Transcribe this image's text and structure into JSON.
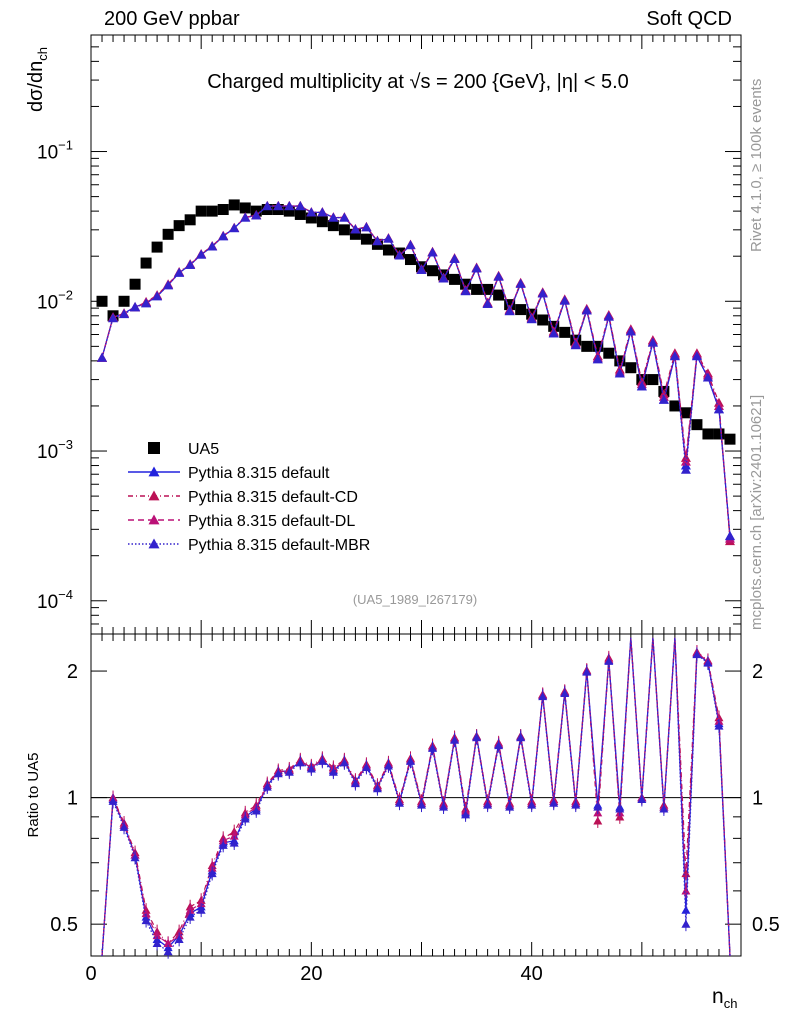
{
  "header": {
    "left": "200 GeV ppbar",
    "right": "Soft QCD"
  },
  "side_labels": {
    "rivet": "Rivet 4.1.0, ≥ 100k events",
    "mcplots": "mcplots.cern.ch [arXiv:2401.10621]"
  },
  "colors": {
    "data": "#000000",
    "default": "#2222dd",
    "cd": "#bb1155",
    "dl": "#bb1177",
    "mbr": "#3322cc"
  },
  "chart_data": [
    {
      "type": "scatter",
      "panel": "main",
      "title": "Charged multiplicity at √s = 200 {GeV}, |η| < 5.0",
      "ylabel": "dσ/dn_ch",
      "yscale": "log",
      "ylim": [
        6e-05,
        0.6
      ],
      "xlim": [
        0,
        59
      ],
      "y_ticks": [
        {
          "value": 0.1,
          "label": "10⁻¹"
        },
        {
          "value": 0.01,
          "label": "10⁻²"
        },
        {
          "value": 0.001,
          "label": "10⁻³"
        },
        {
          "value": 0.0001,
          "label": "10⁻⁴"
        }
      ],
      "reference": "(UA5_1989_I267179)",
      "legend": [
        {
          "key": "ua5",
          "label": "UA5"
        },
        {
          "key": "default",
          "label": "Pythia 8.315 default"
        },
        {
          "key": "cd",
          "label": "Pythia 8.315 default-CD"
        },
        {
          "key": "dl",
          "label": "Pythia 8.315 default-DL"
        },
        {
          "key": "mbr",
          "label": "Pythia 8.315 default-MBR"
        }
      ],
      "data_x": [
        1,
        2,
        3,
        4,
        5,
        6,
        7,
        8,
        9,
        10,
        11,
        12,
        13,
        14,
        15,
        16,
        17,
        18,
        19,
        20,
        21,
        22,
        23,
        24,
        25,
        26,
        27,
        28,
        29,
        30,
        31,
        32,
        33,
        34,
        35,
        36,
        37,
        38,
        39,
        40,
        41,
        42,
        43,
        44,
        45,
        46,
        47,
        48,
        49,
        50,
        51,
        52,
        53,
        54,
        55,
        56,
        57,
        58
      ],
      "data_y": [
        0.01,
        0.008,
        0.01,
        0.013,
        0.018,
        0.023,
        0.028,
        0.032,
        0.035,
        0.04,
        0.04,
        0.041,
        0.044,
        0.042,
        0.04,
        0.041,
        0.041,
        0.04,
        0.038,
        0.036,
        0.034,
        0.032,
        0.03,
        0.028,
        0.026,
        0.024,
        0.022,
        0.021,
        0.019,
        0.017,
        0.016,
        0.015,
        0.014,
        0.013,
        0.012,
        0.012,
        0.011,
        0.0095,
        0.0088,
        0.0082,
        0.0075,
        0.0068,
        0.0062,
        0.0055,
        0.005,
        0.005,
        0.0045,
        0.004,
        0.0036,
        0.003,
        0.003,
        0.0025,
        0.002,
        0.0018,
        0.0015,
        0.0013,
        0.0013,
        0.0012
      ],
      "mc_x": [
        1,
        2,
        3,
        4,
        5,
        6,
        7,
        8,
        9,
        10,
        11,
        12,
        13,
        14,
        15,
        16,
        17,
        18,
        19,
        20,
        21,
        22,
        23,
        24,
        25,
        26,
        27,
        28,
        29,
        30,
        31,
        32,
        33,
        34,
        35,
        36,
        37,
        38,
        39,
        40,
        41,
        42,
        43,
        44,
        45,
        46,
        47,
        48,
        49,
        50,
        51,
        52,
        53,
        54,
        55,
        56,
        57,
        58
      ],
      "series": [
        {
          "name": "Pythia 8.315 default",
          "key": "default",
          "values": [
            0.0042,
            0.0078,
            0.0083,
            0.0092,
            0.0097,
            0.0108,
            0.0128,
            0.0155,
            0.0175,
            0.0205,
            0.0232,
            0.0272,
            0.0308,
            0.0362,
            0.0375,
            0.0432,
            0.0432,
            0.0432,
            0.0432,
            0.0392,
            0.0392,
            0.0362,
            0.0362,
            0.0302,
            0.0312,
            0.0252,
            0.0262,
            0.0202,
            0.0237,
            0.0162,
            0.0212,
            0.0142,
            0.0192,
            0.0117,
            0.0166,
            0.0096,
            0.0146,
            0.0086,
            0.0131,
            0.0076,
            0.0113,
            0.0061,
            0.0101,
            0.0051,
            0.0087,
            0.0041,
            0.0079,
            0.0033,
            0.0063,
            0.0027,
            0.0053,
            0.0022,
            0.0043,
            0.0008,
            0.0043,
            0.0031,
            0.0019,
            0.00027
          ]
        },
        {
          "name": "Pythia 8.315 default-CD",
          "key": "cd",
          "values": [
            0.0042,
            0.0078,
            0.0083,
            0.0091,
            0.0099,
            0.011,
            0.013,
            0.0157,
            0.0177,
            0.0207,
            0.0234,
            0.0274,
            0.031,
            0.0364,
            0.0377,
            0.0434,
            0.0434,
            0.0434,
            0.0434,
            0.0394,
            0.0394,
            0.0364,
            0.0364,
            0.0304,
            0.0314,
            0.0254,
            0.0264,
            0.0204,
            0.0239,
            0.0164,
            0.0214,
            0.0144,
            0.0194,
            0.0119,
            0.0168,
            0.0098,
            0.0148,
            0.0088,
            0.0133,
            0.0078,
            0.0115,
            0.0063,
            0.0103,
            0.0053,
            0.0089,
            0.0043,
            0.0081,
            0.0035,
            0.0065,
            0.0029,
            0.0055,
            0.0024,
            0.0045,
            0.0009,
            0.0045,
            0.0033,
            0.0021,
            0.00025
          ]
        },
        {
          "name": "Pythia 8.315 default-DL",
          "key": "dl",
          "values": [
            0.0042,
            0.0078,
            0.0083,
            0.0091,
            0.0098,
            0.0109,
            0.0129,
            0.0156,
            0.0176,
            0.0206,
            0.0233,
            0.0273,
            0.0309,
            0.0363,
            0.0376,
            0.0433,
            0.0433,
            0.0433,
            0.0433,
            0.0393,
            0.0393,
            0.0363,
            0.0363,
            0.0303,
            0.0313,
            0.0253,
            0.0263,
            0.0203,
            0.0238,
            0.0163,
            0.0213,
            0.0143,
            0.0193,
            0.0118,
            0.0167,
            0.0097,
            0.0147,
            0.0087,
            0.0132,
            0.0077,
            0.0114,
            0.0062,
            0.0102,
            0.0052,
            0.0088,
            0.0042,
            0.008,
            0.0034,
            0.0064,
            0.0028,
            0.0054,
            0.0023,
            0.0044,
            0.00085,
            0.0044,
            0.0032,
            0.002,
            0.00026
          ]
        },
        {
          "name": "Pythia 8.315 default-MBR",
          "key": "mbr",
          "values": [
            0.0042,
            0.0077,
            0.0082,
            0.0091,
            0.0097,
            0.0108,
            0.0128,
            0.0155,
            0.0175,
            0.0205,
            0.0232,
            0.0272,
            0.0308,
            0.0362,
            0.0375,
            0.0432,
            0.0432,
            0.0432,
            0.0432,
            0.0392,
            0.0392,
            0.0362,
            0.0362,
            0.0302,
            0.0312,
            0.0252,
            0.0262,
            0.0202,
            0.0237,
            0.0162,
            0.0212,
            0.0142,
            0.0192,
            0.0117,
            0.0166,
            0.0096,
            0.0146,
            0.0086,
            0.0131,
            0.0076,
            0.0113,
            0.0061,
            0.0101,
            0.0051,
            0.0087,
            0.0041,
            0.0079,
            0.0033,
            0.0063,
            0.0027,
            0.0053,
            0.0022,
            0.0043,
            0.00075,
            0.0043,
            0.0031,
            0.0019,
            0.00027
          ]
        }
      ]
    },
    {
      "type": "line",
      "panel": "ratio",
      "ylabel": "Ratio to UA5",
      "xlabel": "n_ch",
      "yscale": "log",
      "ylim": [
        0.42,
        2.45
      ],
      "xlim": [
        0,
        59
      ],
      "x_ticks": [
        {
          "value": 0,
          "label": "0"
        },
        {
          "value": 20,
          "label": "20"
        },
        {
          "value": 40,
          "label": "40"
        }
      ],
      "y_ticks": [
        {
          "value": 0.5,
          "label": "0.5"
        },
        {
          "value": 1,
          "label": "1"
        },
        {
          "value": 2,
          "label": "2"
        }
      ],
      "x": [
        1,
        2,
        3,
        4,
        5,
        6,
        7,
        8,
        9,
        10,
        11,
        12,
        13,
        14,
        15,
        16,
        17,
        18,
        19,
        20,
        21,
        22,
        23,
        24,
        25,
        26,
        27,
        28,
        29,
        30,
        31,
        32,
        33,
        34,
        35,
        36,
        37,
        38,
        39,
        40,
        41,
        42,
        43,
        44,
        45,
        46,
        47,
        48,
        49,
        50,
        51,
        52,
        53,
        54,
        55,
        56,
        57,
        58
      ],
      "series": [
        {
          "name": "Pythia 8.315 default",
          "key": "default",
          "values": [
            0.4,
            0.99,
            0.86,
            0.73,
            0.52,
            0.46,
            0.44,
            0.47,
            0.53,
            0.55,
            0.67,
            0.78,
            0.79,
            0.9,
            0.94,
            1.07,
            1.15,
            1.16,
            1.22,
            1.18,
            1.23,
            1.16,
            1.22,
            1.09,
            1.19,
            1.06,
            1.2,
            0.98,
            1.23,
            0.97,
            1.32,
            0.96,
            1.38,
            0.92,
            1.4,
            0.97,
            1.34,
            0.96,
            1.4,
            0.97,
            1.75,
            0.98,
            1.78,
            0.97,
            2.0,
            0.96,
            2.12,
            0.95,
            2.4,
            1.0,
            2.4,
            0.95,
            2.4,
            0.54,
            2.2,
            2.1,
            1.5,
            0.22
          ]
        },
        {
          "name": "Pythia 8.315 default-CD",
          "key": "cd",
          "values": [
            0.41,
            1.0,
            0.87,
            0.74,
            0.54,
            0.48,
            0.45,
            0.48,
            0.55,
            0.57,
            0.69,
            0.8,
            0.83,
            0.92,
            0.96,
            1.08,
            1.16,
            1.17,
            1.23,
            1.19,
            1.24,
            1.18,
            1.23,
            1.1,
            1.2,
            1.07,
            1.21,
            0.99,
            1.24,
            0.98,
            1.33,
            0.97,
            1.39,
            0.94,
            1.4,
            0.98,
            1.35,
            0.97,
            1.4,
            0.98,
            1.76,
            0.99,
            1.79,
            0.98,
            2.01,
            0.88,
            2.15,
            0.9,
            2.4,
            1.0,
            2.4,
            0.96,
            2.4,
            0.66,
            2.22,
            2.12,
            1.55,
            0.22
          ]
        },
        {
          "name": "Pythia 8.315 default-DL",
          "key": "dl",
          "values": [
            0.4,
            1.0,
            0.86,
            0.73,
            0.53,
            0.47,
            0.45,
            0.47,
            0.54,
            0.56,
            0.68,
            0.79,
            0.81,
            0.91,
            0.95,
            1.07,
            1.15,
            1.16,
            1.22,
            1.18,
            1.23,
            1.17,
            1.22,
            1.09,
            1.19,
            1.06,
            1.2,
            0.98,
            1.23,
            0.97,
            1.32,
            0.96,
            1.38,
            0.93,
            1.39,
            0.97,
            1.34,
            0.96,
            1.39,
            0.97,
            1.75,
            0.98,
            1.78,
            0.97,
            2.0,
            0.92,
            2.13,
            0.92,
            2.4,
            1.0,
            2.4,
            0.95,
            2.4,
            0.6,
            2.21,
            2.11,
            1.52,
            0.22
          ]
        },
        {
          "name": "Pythia 8.315 default-MBR",
          "key": "mbr",
          "values": [
            0.39,
            0.98,
            0.85,
            0.72,
            0.51,
            0.45,
            0.43,
            0.46,
            0.52,
            0.54,
            0.66,
            0.77,
            0.78,
            0.89,
            0.93,
            1.06,
            1.14,
            1.15,
            1.21,
            1.17,
            1.22,
            1.15,
            1.21,
            1.08,
            1.18,
            1.05,
            1.19,
            0.97,
            1.22,
            0.96,
            1.31,
            0.95,
            1.37,
            0.91,
            1.39,
            0.96,
            1.33,
            0.95,
            1.39,
            0.96,
            1.74,
            0.97,
            1.77,
            0.96,
            1.99,
            0.95,
            2.11,
            0.94,
            2.4,
            0.99,
            2.4,
            0.94,
            2.4,
            0.5,
            2.19,
            2.09,
            1.48,
            0.22
          ]
        }
      ]
    }
  ]
}
